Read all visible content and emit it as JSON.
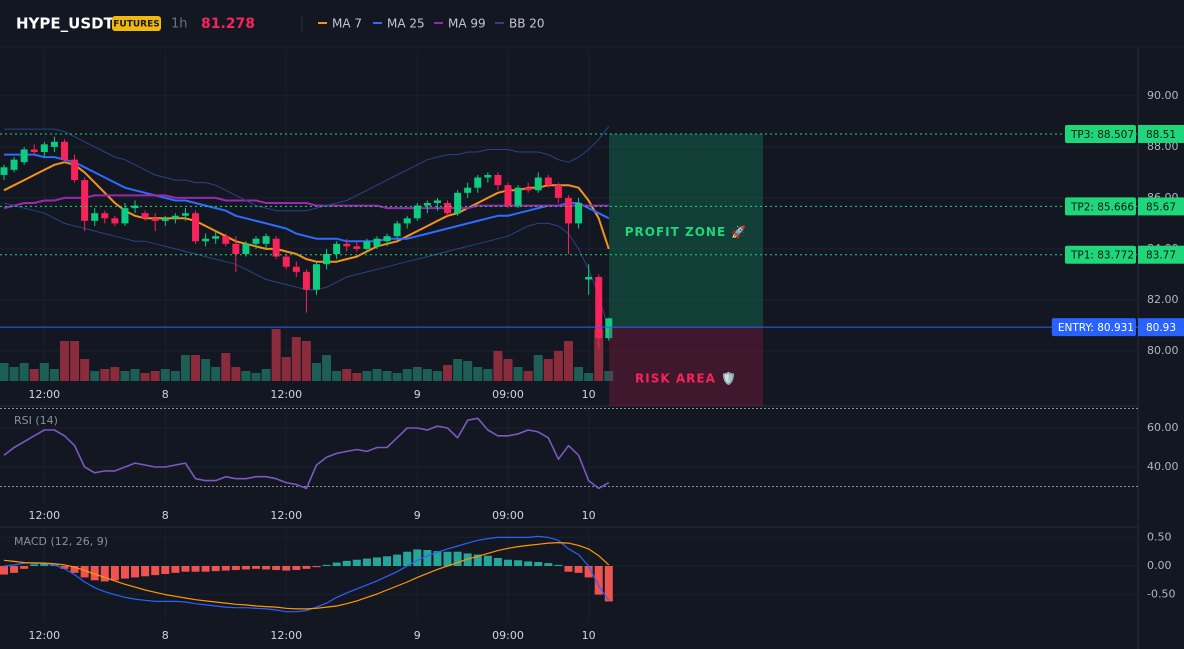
{
  "header": {
    "symbol": "HYPE_USDT",
    "badge": "FUTURES",
    "interval": "1h",
    "price": 81.278
  },
  "chart_data": [
    {
      "type": "candlestick",
      "categories": [
        null,
        null,
        null,
        null,
        "12:00",
        null,
        null,
        null,
        null,
        null,
        null,
        null,
        null,
        null,
        null,
        null,
        "8",
        null,
        null,
        null,
        null,
        null,
        null,
        null,
        null,
        null,
        null,
        null,
        "12:00",
        null,
        null,
        null,
        null,
        null,
        null,
        null,
        null,
        null,
        null,
        null,
        null,
        "9",
        null,
        null,
        null,
        null,
        null,
        null,
        null,
        null,
        "09:00",
        null,
        null,
        null,
        null,
        null,
        null,
        null,
        "10",
        null,
        null
      ],
      "open": [
        86.9,
        87.1,
        87.4,
        87.9,
        87.8,
        88.0,
        88.2,
        87.5,
        86.7,
        85.1,
        85.4,
        85.2,
        85.0,
        85.6,
        85.4,
        85.2,
        85.1,
        85.2,
        85.3,
        85.4,
        84.3,
        84.4,
        84.5,
        84.2,
        83.8,
        84.2,
        84.2,
        84.4,
        83.7,
        83.3,
        83.1,
        82.4,
        83.4,
        83.8,
        84.2,
        84.1,
        84.0,
        84.1,
        84.3,
        84.5,
        85.0,
        85.2,
        85.7,
        85.8,
        85.8,
        85.4,
        86.2,
        86.4,
        86.8,
        86.9,
        86.5,
        85.7,
        86.4,
        86.3,
        86.8,
        86.5,
        86.0,
        85.0,
        82.8,
        82.9,
        80.5
      ],
      "high": [
        87.3,
        87.6,
        88.0,
        88.1,
        88.2,
        88.4,
        88.3,
        87.7,
        86.8,
        85.6,
        85.5,
        85.3,
        85.8,
        85.9,
        85.5,
        85.4,
        85.3,
        85.4,
        85.6,
        85.5,
        84.6,
        84.7,
        84.6,
        84.5,
        84.3,
        84.5,
        84.6,
        84.5,
        83.8,
        83.5,
        83.2,
        83.5,
        84.0,
        84.3,
        84.4,
        84.3,
        84.4,
        84.5,
        84.6,
        85.1,
        85.3,
        85.8,
        85.9,
        86.0,
        85.9,
        86.3,
        86.6,
        86.9,
        87.0,
        87.0,
        86.6,
        86.5,
        86.6,
        87.0,
        86.9,
        86.6,
        86.1,
        86.0,
        83.4,
        83.0,
        81.3
      ],
      "low": [
        86.7,
        87.0,
        87.3,
        87.7,
        87.6,
        87.8,
        87.4,
        86.6,
        84.7,
        84.9,
        85.0,
        84.9,
        84.9,
        85.4,
        85.1,
        84.7,
        84.9,
        85.0,
        85.1,
        84.2,
        84.1,
        84.2,
        84.1,
        83.1,
        83.7,
        84.0,
        84.0,
        83.6,
        83.2,
        82.9,
        81.5,
        82.2,
        83.2,
        83.6,
        83.9,
        83.9,
        83.9,
        84.0,
        84.1,
        84.4,
        84.8,
        85.1,
        85.4,
        85.5,
        85.3,
        85.3,
        86.0,
        86.2,
        86.6,
        86.3,
        85.6,
        85.6,
        86.2,
        86.2,
        86.4,
        85.8,
        83.8,
        84.8,
        82.2,
        80.1,
        80.4
      ],
      "close": [
        87.2,
        87.5,
        87.9,
        87.8,
        88.1,
        88.2,
        87.5,
        86.7,
        85.1,
        85.4,
        85.2,
        85.0,
        85.6,
        85.7,
        85.2,
        85.1,
        85.2,
        85.3,
        85.4,
        84.3,
        84.4,
        84.5,
        84.2,
        83.8,
        84.2,
        84.4,
        84.5,
        83.7,
        83.3,
        83.1,
        82.4,
        83.4,
        83.8,
        84.2,
        84.1,
        84.0,
        84.3,
        84.4,
        84.5,
        85.0,
        85.2,
        85.7,
        85.8,
        85.9,
        85.4,
        86.2,
        86.4,
        86.8,
        86.9,
        86.5,
        85.7,
        86.4,
        86.3,
        86.8,
        86.5,
        86.0,
        85.0,
        85.8,
        82.9,
        80.5,
        81.278
      ],
      "volume": [
        18,
        14,
        18,
        12,
        18,
        12,
        40,
        40,
        22,
        10,
        12,
        14,
        10,
        12,
        8,
        10,
        12,
        10,
        26,
        26,
        22,
        14,
        28,
        14,
        10,
        8,
        12,
        52,
        24,
        44,
        40,
        18,
        26,
        10,
        12,
        8,
        10,
        12,
        10,
        8,
        12,
        14,
        12,
        10,
        16,
        22,
        20,
        14,
        12,
        30,
        22,
        14,
        10,
        26,
        22,
        30,
        40,
        14,
        8,
        52,
        10
      ],
      "up_color": "#0ecb81",
      "down_color": "#f6245a",
      "vol_up_color": "#1d5e55",
      "vol_down_color": "#8a2c3c",
      "series": [
        {
          "name": "MA 7",
          "color": "#f7931a",
          "values": [
            86.3,
            86.5,
            86.7,
            86.9,
            87.1,
            87.3,
            87.4,
            87.3,
            87.0,
            86.6,
            86.2,
            85.8,
            85.5,
            85.3,
            85.2,
            85.2,
            85.2,
            85.2,
            85.2,
            85.1,
            84.9,
            84.7,
            84.5,
            84.3,
            84.2,
            84.1,
            84.0,
            84.0,
            83.9,
            83.8,
            83.6,
            83.5,
            83.5,
            83.5,
            83.6,
            83.7,
            83.9,
            84.1,
            84.2,
            84.3,
            84.5,
            84.7,
            84.9,
            85.1,
            85.3,
            85.4,
            85.6,
            85.8,
            86.0,
            86.2,
            86.3,
            86.3,
            86.4,
            86.4,
            86.5,
            86.5,
            86.5,
            86.4,
            85.9,
            85.2,
            84.0
          ]
        },
        {
          "name": "MA 25",
          "color": "#2f6bff",
          "values": [
            87.7,
            87.7,
            87.7,
            87.7,
            87.6,
            87.6,
            87.5,
            87.4,
            87.2,
            87.0,
            86.8,
            86.6,
            86.4,
            86.3,
            86.2,
            86.1,
            86.0,
            85.9,
            85.9,
            85.8,
            85.7,
            85.6,
            85.5,
            85.3,
            85.2,
            85.1,
            85.0,
            84.9,
            84.8,
            84.6,
            84.5,
            84.4,
            84.4,
            84.4,
            84.3,
            84.3,
            84.3,
            84.3,
            84.4,
            84.4,
            84.4,
            84.5,
            84.6,
            84.7,
            84.8,
            84.9,
            85.0,
            85.1,
            85.2,
            85.3,
            85.3,
            85.4,
            85.5,
            85.6,
            85.7,
            85.7,
            85.8,
            85.8,
            85.6,
            85.4,
            85.2
          ]
        },
        {
          "name": "MA 99",
          "color": "#9c27b0",
          "values": [
            85.6,
            85.7,
            85.8,
            85.8,
            85.9,
            85.9,
            86.0,
            86.0,
            86.0,
            86.1,
            86.1,
            86.1,
            86.1,
            86.1,
            86.1,
            86.1,
            86.1,
            86.0,
            86.0,
            86.0,
            86.0,
            86.0,
            85.9,
            85.9,
            85.9,
            85.9,
            85.8,
            85.8,
            85.8,
            85.8,
            85.8,
            85.7,
            85.7,
            85.7,
            85.7,
            85.7,
            85.7,
            85.7,
            85.6,
            85.6,
            85.6,
            85.6,
            85.6,
            85.6,
            85.6,
            85.6,
            85.6,
            85.7,
            85.7,
            85.7,
            85.7,
            85.7,
            85.7,
            85.7,
            85.7,
            85.7,
            85.7,
            85.7,
            85.7,
            85.7,
            85.7
          ]
        },
        {
          "name": "BB 20",
          "color": "#2a4386",
          "upper": [
            88.7,
            88.7,
            88.7,
            88.7,
            88.7,
            88.7,
            88.6,
            88.4,
            88.2,
            88.0,
            87.8,
            87.6,
            87.5,
            87.3,
            87.1,
            86.9,
            86.8,
            86.7,
            86.7,
            86.6,
            86.6,
            86.5,
            86.3,
            86.1,
            85.9,
            85.7,
            85.6,
            85.5,
            85.5,
            85.5,
            85.5,
            85.6,
            85.7,
            85.8,
            85.9,
            86.1,
            86.3,
            86.5,
            86.7,
            86.9,
            87.1,
            87.3,
            87.5,
            87.6,
            87.7,
            87.7,
            87.8,
            87.8,
            87.9,
            87.9,
            87.9,
            87.8,
            87.8,
            87.8,
            87.7,
            87.5,
            87.4,
            87.6,
            87.9,
            88.3,
            88.8
          ],
          "lower": [
            85.8,
            85.7,
            85.6,
            85.5,
            85.4,
            85.2,
            85.0,
            84.9,
            84.8,
            84.7,
            84.6,
            84.5,
            84.4,
            84.3,
            84.3,
            84.2,
            84.1,
            84.0,
            83.9,
            83.8,
            83.7,
            83.6,
            83.5,
            83.4,
            83.2,
            83.0,
            82.8,
            82.7,
            82.6,
            82.5,
            82.4,
            82.4,
            82.5,
            82.7,
            82.9,
            83.0,
            83.1,
            83.2,
            83.3,
            83.4,
            83.5,
            83.6,
            83.7,
            83.8,
            83.9,
            84.0,
            84.1,
            84.2,
            84.3,
            84.4,
            84.5,
            84.7,
            84.9,
            85.0,
            85.0,
            84.9,
            84.6,
            84.0,
            83.2,
            82.2,
            80.8
          ]
        }
      ],
      "levels": [
        {
          "label": "TP3: 88.507",
          "tag": "88.51",
          "value": 88.507,
          "color": "#1fd67a"
        },
        {
          "label": "TP2: 85.666",
          "tag": "85.67",
          "value": 85.666,
          "color": "#1fd67a"
        },
        {
          "label": "TP1: 83.772",
          "tag": "83.77",
          "value": 83.772,
          "color": "#1fd67a"
        },
        {
          "label": "ENTRY: 80.931",
          "tag": "80.93",
          "value": 80.931,
          "color": "#2962ff"
        }
      ],
      "zones": {
        "profit": "PROFIT ZONE 🚀",
        "risk": "RISK AREA 🛡️"
      },
      "ylim": [
        78.82,
        91.8
      ],
      "yticks": [
        {
          "value": 80,
          "label": "80.00"
        },
        {
          "value": 82,
          "label": "82.00"
        },
        {
          "value": 84,
          "label": "84.00"
        },
        {
          "value": 86,
          "label": "86.00"
        },
        {
          "value": 88,
          "label": "88.00"
        },
        {
          "value": 90,
          "label": "90.00"
        }
      ],
      "grid": true
    },
    {
      "type": "line",
      "title": "RSI (14)",
      "categories": [
        null,
        null,
        null,
        null,
        "12:00",
        null,
        null,
        null,
        null,
        null,
        null,
        null,
        null,
        null,
        null,
        null,
        "8",
        null,
        null,
        null,
        null,
        null,
        null,
        null,
        null,
        null,
        null,
        null,
        "12:00",
        null,
        null,
        null,
        null,
        null,
        null,
        null,
        null,
        null,
        null,
        null,
        null,
        "9",
        null,
        null,
        null,
        null,
        null,
        null,
        null,
        null,
        "09:00",
        null,
        null,
        null,
        null,
        null,
        null,
        null,
        "10",
        null,
        null
      ],
      "series": [
        {
          "name": "RSI",
          "color": "#7e57c2",
          "values": [
            46,
            50,
            53,
            56,
            59,
            59,
            56,
            51,
            40,
            37,
            38,
            38,
            40,
            42,
            41,
            40,
            40,
            41,
            42,
            34,
            33,
            33,
            35,
            34,
            34,
            35,
            35,
            34,
            32,
            31,
            29,
            41,
            45,
            47,
            48,
            49,
            48,
            50,
            50,
            55,
            60,
            60,
            59,
            61,
            60,
            55,
            64,
            65,
            59,
            56,
            56,
            57,
            59,
            58,
            55,
            44,
            51,
            46,
            33,
            29,
            32
          ]
        }
      ],
      "levels": [
        70,
        30
      ],
      "ylim": [
        20.5,
        71.3
      ],
      "yticks": [
        {
          "value": 40,
          "label": "40.00"
        },
        {
          "value": 60,
          "label": "60.00"
        }
      ],
      "grid": true
    },
    {
      "type": "macd",
      "title": "MACD (12, 26, 9)",
      "categories": [
        null,
        null,
        null,
        null,
        "12:00",
        null,
        null,
        null,
        null,
        null,
        null,
        null,
        null,
        null,
        null,
        null,
        "8",
        null,
        null,
        null,
        null,
        null,
        null,
        null,
        null,
        null,
        null,
        null,
        "12:00",
        null,
        null,
        null,
        null,
        null,
        null,
        null,
        null,
        null,
        null,
        null,
        null,
        "9",
        null,
        null,
        null,
        null,
        null,
        null,
        null,
        null,
        "09:00",
        null,
        null,
        null,
        null,
        null,
        null,
        null,
        "10",
        null,
        null
      ],
      "histogram": [
        -0.15,
        -0.12,
        -0.05,
        0.03,
        0.05,
        0.03,
        -0.05,
        -0.12,
        -0.2,
        -0.25,
        -0.27,
        -0.25,
        -0.22,
        -0.2,
        -0.18,
        -0.16,
        -0.14,
        -0.12,
        -0.1,
        -0.1,
        -0.1,
        -0.09,
        -0.08,
        -0.07,
        -0.06,
        -0.05,
        -0.06,
        -0.07,
        -0.08,
        -0.07,
        -0.05,
        -0.02,
        0.02,
        0.06,
        0.09,
        0.11,
        0.13,
        0.15,
        0.17,
        0.2,
        0.25,
        0.29,
        0.28,
        0.26,
        0.25,
        0.25,
        0.22,
        0.2,
        0.18,
        0.14,
        0.11,
        0.1,
        0.08,
        0.07,
        0.05,
        0.02,
        -0.1,
        -0.12,
        -0.2,
        -0.5,
        -0.62
      ],
      "hist_up_color": "#26a69a",
      "hist_down_color": "#ef5350",
      "series": [
        {
          "name": "MACD",
          "color": "#2962ff",
          "values": [
            0,
            0.02,
            0.05,
            0.06,
            0.05,
            0.02,
            -0.05,
            -0.15,
            -0.28,
            -0.38,
            -0.45,
            -0.5,
            -0.55,
            -0.58,
            -0.6,
            -0.62,
            -0.62,
            -0.62,
            -0.63,
            -0.66,
            -0.68,
            -0.7,
            -0.72,
            -0.73,
            -0.73,
            -0.74,
            -0.75,
            -0.77,
            -0.8,
            -0.8,
            -0.78,
            -0.72,
            -0.65,
            -0.55,
            -0.47,
            -0.4,
            -0.33,
            -0.26,
            -0.18,
            -0.1,
            0,
            0.1,
            0.18,
            0.24,
            0.3,
            0.35,
            0.4,
            0.45,
            0.48,
            0.5,
            0.5,
            0.5,
            0.5,
            0.52,
            0.5,
            0.45,
            0.3,
            0.2,
            0,
            -0.35,
            -0.6
          ]
        },
        {
          "name": "Signal",
          "color": "#ff9800",
          "values": [
            0.1,
            0.08,
            0.06,
            0.05,
            0.05,
            0.04,
            0.02,
            -0.02,
            -0.08,
            -0.14,
            -0.2,
            -0.26,
            -0.32,
            -0.37,
            -0.42,
            -0.46,
            -0.5,
            -0.53,
            -0.56,
            -0.59,
            -0.61,
            -0.63,
            -0.65,
            -0.67,
            -0.68,
            -0.7,
            -0.71,
            -0.72,
            -0.74,
            -0.75,
            -0.75,
            -0.74,
            -0.72,
            -0.7,
            -0.66,
            -0.61,
            -0.55,
            -0.49,
            -0.42,
            -0.35,
            -0.28,
            -0.2,
            -0.13,
            -0.06,
            0,
            0.06,
            0.12,
            0.17,
            0.22,
            0.27,
            0.31,
            0.34,
            0.36,
            0.38,
            0.4,
            0.41,
            0.4,
            0.36,
            0.3,
            0.18,
            0.02
          ]
        }
      ],
      "ylim": [
        -0.98,
        0.63
      ],
      "yticks": [
        {
          "value": -0.5,
          "label": "-0.50"
        },
        {
          "value": 0,
          "label": "0.00"
        },
        {
          "value": 0.5,
          "label": "0.50"
        }
      ],
      "grid": true
    }
  ]
}
